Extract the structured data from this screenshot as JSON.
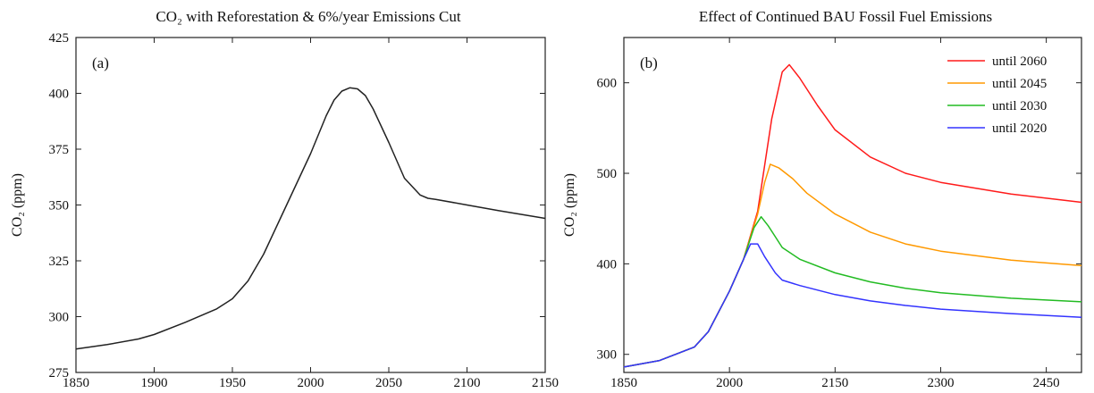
{
  "chart_data": [
    {
      "type": "line",
      "title": "CO₂ with Reforestation & 6%/year Emissions Cut",
      "panel_tag": "(a)",
      "ylabel": "CO₂ (ppm)",
      "xlabel": "",
      "xlim": [
        1850,
        2150
      ],
      "ylim": [
        275,
        425
      ],
      "xticks": [
        1850,
        1900,
        1950,
        2000,
        2050,
        2100,
        2150
      ],
      "yticks": [
        275,
        300,
        325,
        350,
        375,
        400,
        425
      ],
      "grid": false,
      "series": [
        {
          "color": "#222222",
          "x": [
            1850,
            1870,
            1890,
            1900,
            1920,
            1940,
            1950,
            1960,
            1970,
            1980,
            1990,
            2000,
            2010,
            2015,
            2020,
            2025,
            2030,
            2035,
            2040,
            2050,
            2060,
            2070,
            2075,
            2080,
            2100,
            2120,
            2150
          ],
          "y": [
            285.5,
            287.5,
            290,
            292,
            297.5,
            303.5,
            308,
            316,
            328,
            343,
            358,
            373,
            390,
            397,
            401,
            402.5,
            402,
            399,
            393,
            378,
            362,
            354.5,
            353,
            352.5,
            350,
            347.5,
            344
          ]
        }
      ]
    },
    {
      "type": "line",
      "title": "Effect of Continued BAU Fossil Fuel Emissions",
      "panel_tag": "(b)",
      "ylabel": "CO₂ (ppm)",
      "xlabel": "",
      "xlim": [
        1850,
        2500
      ],
      "ylim": [
        280,
        650
      ],
      "xticks": [
        1850,
        2000,
        2150,
        2300,
        2450
      ],
      "yticks": [
        300,
        400,
        500,
        600
      ],
      "grid": false,
      "legend": "top-right",
      "series": [
        {
          "name": "until 2060",
          "color": "#ff1a1a",
          "x": [
            1850,
            1900,
            1950,
            1970,
            2000,
            2020,
            2040,
            2060,
            2075,
            2085,
            2100,
            2125,
            2150,
            2200,
            2250,
            2300,
            2400,
            2500
          ],
          "y": [
            286,
            293,
            308,
            325,
            370,
            405,
            458,
            560,
            612,
            620,
            605,
            575,
            548,
            518,
            500,
            490,
            477,
            468
          ]
        },
        {
          "name": "until 2045",
          "color": "#ff9900",
          "x": [
            1850,
            1900,
            1950,
            1970,
            2000,
            2020,
            2040,
            2050,
            2058,
            2070,
            2090,
            2110,
            2150,
            2200,
            2250,
            2300,
            2400,
            2500
          ],
          "y": [
            286,
            293,
            308,
            325,
            370,
            405,
            455,
            490,
            510,
            506,
            494,
            478,
            455,
            435,
            422,
            414,
            404,
            398
          ]
        },
        {
          "name": "until 2030",
          "color": "#22bb22",
          "x": [
            1850,
            1900,
            1950,
            1970,
            2000,
            2020,
            2035,
            2045,
            2055,
            2065,
            2075,
            2100,
            2150,
            2200,
            2250,
            2300,
            2400,
            2500
          ],
          "y": [
            286,
            293,
            308,
            325,
            370,
            405,
            440,
            452,
            442,
            430,
            418,
            405,
            390,
            380,
            373,
            368,
            362,
            358
          ]
        },
        {
          "name": "until 2020",
          "color": "#3333ff",
          "x": [
            1850,
            1900,
            1950,
            1970,
            2000,
            2020,
            2030,
            2040,
            2050,
            2065,
            2075,
            2100,
            2150,
            2200,
            2250,
            2300,
            2400,
            2500
          ],
          "y": [
            286,
            293,
            308,
            325,
            370,
            405,
            422,
            422,
            408,
            390,
            382,
            376,
            366,
            359,
            354,
            350,
            345,
            341
          ]
        }
      ]
    }
  ]
}
